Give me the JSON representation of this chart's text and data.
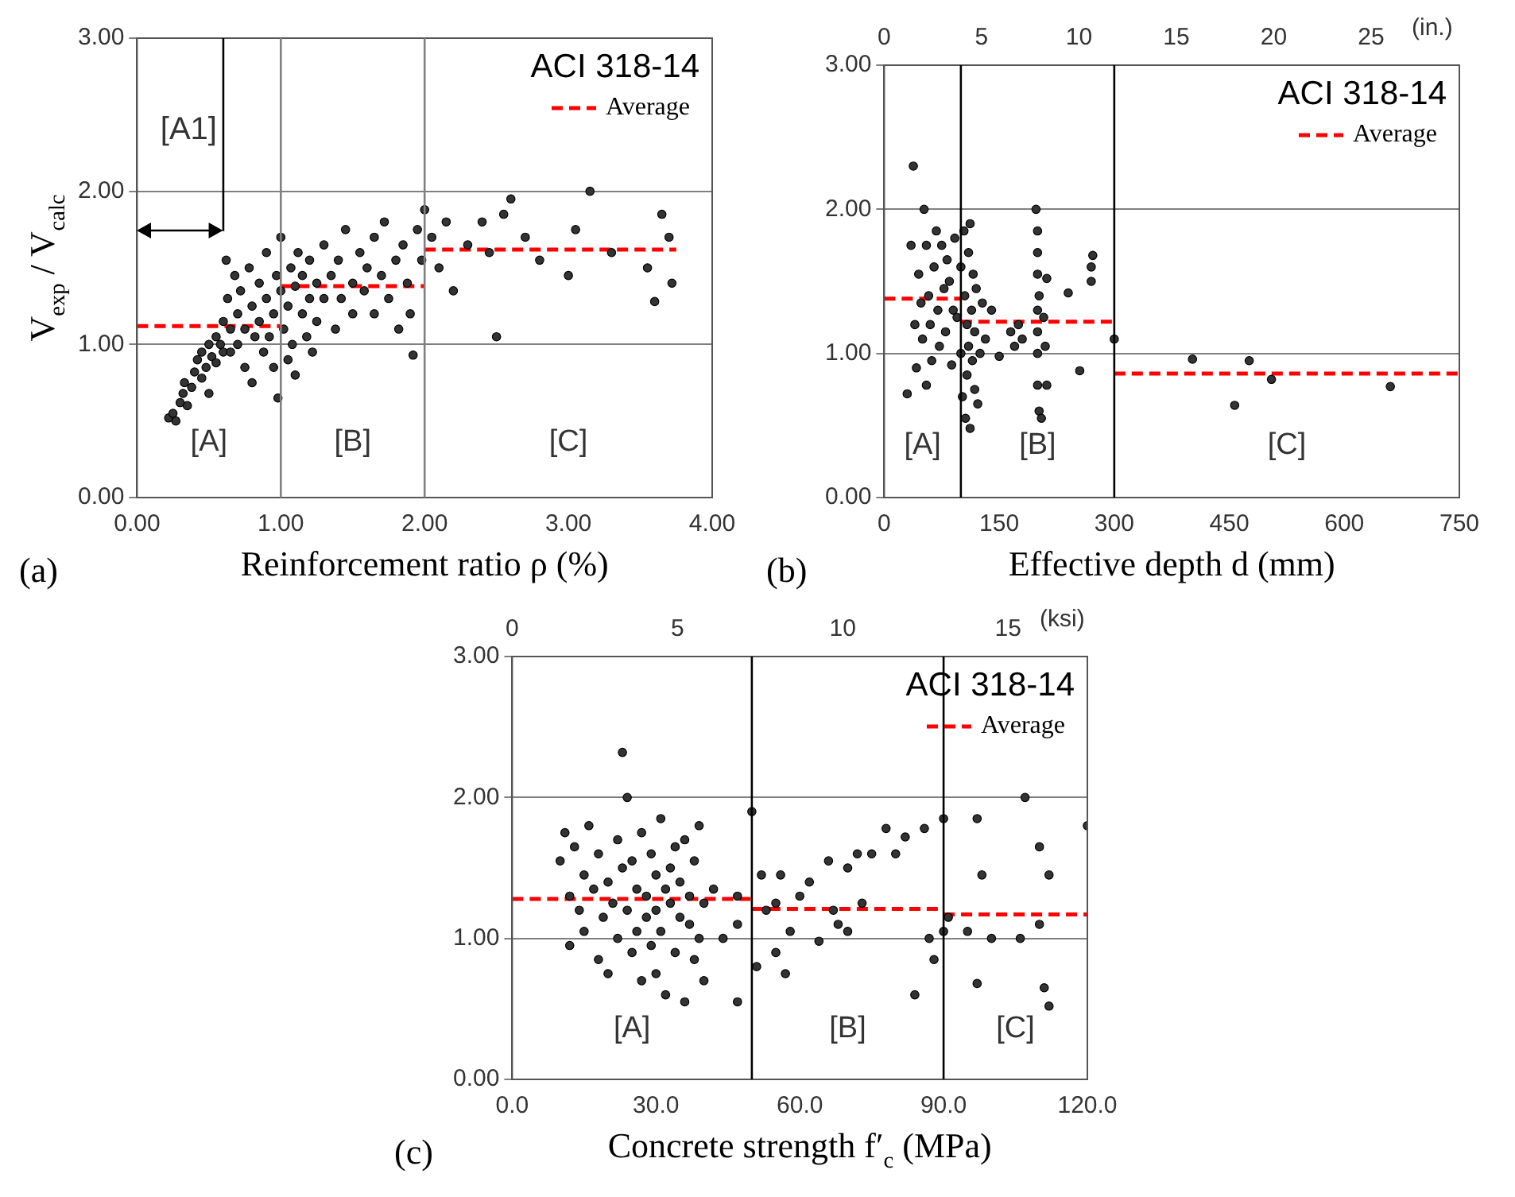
{
  "chart_data": [
    {
      "type": "scatter",
      "title": "ACI 318-14",
      "xlabel": "Reinforcement ratio ρ (%)",
      "ylabel": "V$_{exp}$ / V$_{calc}$",
      "xlim": [
        0,
        4
      ],
      "xticks": [
        {
          "value": 0,
          "label": "0.00"
        },
        {
          "value": 1,
          "label": "1.00"
        },
        {
          "value": 2,
          "label": "2.00"
        },
        {
          "value": 3,
          "label": "3.00"
        },
        {
          "value": 4,
          "label": "4.00"
        }
      ],
      "ylim": [
        0,
        3
      ],
      "yticks": [
        {
          "value": 0,
          "label": "0.00"
        },
        {
          "value": 1,
          "label": "1.00"
        },
        {
          "value": 2,
          "label": "2.00"
        },
        {
          "value": 3,
          "label": "3.00"
        }
      ],
      "grid": "y",
      "legend": "top right",
      "marker": "circle",
      "series": [
        {
          "color": "#333333",
          "x": [
            0.22,
            0.25,
            0.27,
            0.3,
            0.32,
            0.35,
            0.33,
            0.38,
            0.4,
            0.42,
            0.45,
            0.45,
            0.48,
            0.5,
            0.5,
            0.52,
            0.55,
            0.55,
            0.58,
            0.6,
            0.6,
            0.62,
            0.63,
            0.65,
            0.65,
            0.68,
            0.7,
            0.7,
            0.72,
            0.75,
            0.75,
            0.78,
            0.8,
            0.8,
            0.82,
            0.85,
            0.85,
            0.88,
            0.9,
            0.9,
            0.92,
            0.95,
            0.95,
            0.97,
            0.98,
            1.0,
            1.0,
            1.02,
            1.05,
            1.05,
            1.07,
            1.08,
            1.1,
            1.1,
            1.12,
            1.15,
            1.15,
            1.18,
            1.2,
            1.2,
            1.22,
            1.25,
            1.25,
            1.3,
            1.3,
            1.35,
            1.38,
            1.4,
            1.42,
            1.45,
            1.5,
            1.5,
            1.55,
            1.58,
            1.6,
            1.65,
            1.65,
            1.7,
            1.72,
            1.75,
            1.8,
            1.82,
            1.85,
            1.88,
            1.9,
            1.92,
            1.95,
            1.98,
            2.0,
            2.05,
            2.1,
            2.15,
            2.2,
            2.3,
            2.4,
            2.45,
            2.5,
            2.55,
            2.6,
            2.7,
            2.8,
            3.0,
            3.05,
            3.15,
            3.3,
            3.55,
            3.6,
            3.65,
            3.7,
            3.72
          ],
          "values": [
            0.52,
            0.55,
            0.5,
            0.62,
            0.68,
            0.6,
            0.75,
            0.72,
            0.82,
            0.9,
            0.78,
            0.95,
            0.85,
            1.0,
            0.68,
            0.92,
            1.05,
            0.88,
            1.0,
            0.95,
            1.15,
            1.55,
            1.3,
            1.1,
            0.95,
            1.45,
            1.2,
            1.0,
            1.35,
            1.1,
            0.85,
            1.5,
            1.25,
            0.75,
            1.05,
            1.4,
            1.15,
            0.95,
            1.3,
            1.6,
            1.05,
            1.2,
            0.85,
            1.45,
            0.65,
            1.35,
            1.7,
            1.1,
            1.25,
            0.9,
            1.5,
            1.0,
            1.38,
            0.8,
            1.6,
            1.2,
            1.45,
            1.05,
            1.3,
            1.55,
            0.95,
            1.4,
            1.15,
            1.65,
            1.3,
            1.45,
            1.1,
            1.55,
            1.3,
            1.75,
            1.4,
            1.2,
            1.6,
            1.35,
            1.5,
            1.7,
            1.2,
            1.45,
            1.8,
            1.3,
            1.55,
            1.1,
            1.65,
            1.4,
            1.2,
            0.93,
            1.75,
            1.55,
            1.88,
            1.7,
            1.5,
            1.8,
            1.35,
            1.65,
            1.8,
            1.6,
            1.05,
            1.85,
            1.95,
            1.7,
            1.55,
            1.45,
            1.75,
            2.0,
            1.6,
            1.5,
            1.28,
            1.85,
            1.7,
            1.4
          ]
        },
        {
          "type": "line",
          "name": "Average",
          "color": "#ff0000",
          "line_style": "dashed",
          "marker": "none",
          "x": [
            0,
            1
          ],
          "values": [
            1.12,
            1.12
          ]
        },
        {
          "type": "line",
          "color": "#ff0000",
          "line_style": "dashed",
          "marker": "none",
          "x": [
            1,
            2
          ],
          "values": [
            1.38,
            1.38
          ]
        },
        {
          "type": "line",
          "color": "#ff0000",
          "line_style": "dashed",
          "marker": "none",
          "x": [
            2,
            3.75
          ],
          "values": [
            1.62,
            1.62
          ]
        }
      ],
      "ref_lines": [
        {
          "axis": "x",
          "value": 0.6,
          "label": "[A1]",
          "color": "#000000"
        },
        {
          "axis": "x",
          "value": 1,
          "color": "#808080"
        },
        {
          "axis": "x",
          "value": 2,
          "color": "#808080"
        }
      ],
      "annotations": [
        "[A]",
        "[B]",
        "[C]",
        "(a)"
      ]
    },
    {
      "type": "scatter",
      "title": "ACI 318-14",
      "xlabel": "Effective depth d (mm)",
      "x2label": "(in.)",
      "xlim": [
        0,
        750
      ],
      "xticks": [
        0,
        150,
        300,
        450,
        600,
        750
      ],
      "x2lim": [
        0,
        29.53
      ],
      "x2ticks": [
        0,
        5,
        10,
        15,
        20,
        25
      ],
      "ylim": [
        0,
        3
      ],
      "yticks": [
        {
          "value": 0,
          "label": "0.00"
        },
        {
          "value": 1,
          "label": "1.00"
        },
        {
          "value": 2,
          "label": "2.00"
        },
        {
          "value": 3,
          "label": "3.00"
        }
      ],
      "grid": "y",
      "legend": "top right",
      "marker": "circle",
      "series": [
        {
          "color": "#333333",
          "x": [
            30,
            35,
            38,
            40,
            42,
            45,
            48,
            50,
            52,
            55,
            55,
            58,
            60,
            62,
            65,
            68,
            70,
            72,
            75,
            78,
            80,
            82,
            85,
            88,
            90,
            92,
            95,
            100,
            100,
            102,
            104,
            105,
            106,
            108,
            108,
            110,
            110,
            112,
            112,
            114,
            115,
            116,
            118,
            118,
            120,
            122,
            125,
            128,
            132,
            140,
            150,
            165,
            170,
            175,
            180,
            198,
            200,
            200,
            200,
            200,
            200,
            200,
            200,
            202,
            202,
            205,
            208,
            210,
            212,
            212,
            240,
            255,
            270,
            270,
            272,
            300,
            402,
            457,
            476,
            505,
            660
          ],
          "values": [
            0.72,
            1.75,
            2.3,
            1.2,
            0.9,
            1.55,
            1.35,
            1.1,
            2.0,
            1.75,
            0.78,
            1.4,
            1.2,
            0.95,
            1.6,
            1.85,
            1.3,
            1.05,
            1.75,
            1.45,
            1.15,
            1.65,
            1.5,
            0.92,
            1.3,
            1.8,
            1.25,
            1.6,
            1.0,
            0.7,
            1.85,
            1.4,
            0.55,
            1.2,
            0.85,
            1.7,
            1.05,
            1.9,
            0.48,
            1.3,
            0.95,
            1.55,
            0.75,
            1.15,
            1.45,
            0.65,
            1.0,
            1.35,
            1.1,
            1.3,
            0.98,
            1.15,
            1.05,
            1.2,
            1.1,
            2.0,
            1.85,
            1.7,
            1.55,
            1.3,
            1.15,
            1.0,
            0.78,
            1.4,
            0.6,
            0.55,
            1.25,
            1.05,
            1.52,
            0.78,
            1.42,
            0.88,
            1.6,
            1.5,
            1.68,
            1.1,
            0.96,
            0.64,
            0.95,
            0.82,
            0.77
          ]
        },
        {
          "type": "line",
          "name": "Average",
          "color": "#ff0000",
          "line_style": "dashed",
          "marker": "none",
          "x": [
            0,
            100
          ],
          "values": [
            1.38,
            1.38
          ]
        },
        {
          "type": "line",
          "color": "#ff0000",
          "line_style": "dashed",
          "marker": "none",
          "x": [
            100,
            300
          ],
          "values": [
            1.22,
            1.22
          ]
        },
        {
          "type": "line",
          "color": "#ff0000",
          "line_style": "dashed",
          "marker": "none",
          "x": [
            300,
            750
          ],
          "values": [
            0.86,
            0.86
          ]
        }
      ],
      "ref_lines": [
        {
          "axis": "x",
          "value": 100,
          "color": "#000000"
        },
        {
          "axis": "x",
          "value": 300,
          "color": "#000000"
        }
      ],
      "annotations": [
        "[A]",
        "[B]",
        "[C]",
        "(b)"
      ]
    },
    {
      "type": "scatter",
      "title": "ACI 318-14",
      "xlabel": "Concrete strength f′$_{c}$ (MPa)",
      "x2label": "(ksi)",
      "xlim": [
        0,
        120
      ],
      "xticks": [
        {
          "value": 0,
          "label": "0.0"
        },
        {
          "value": 30,
          "label": "30.0"
        },
        {
          "value": 60,
          "label": "60.0"
        },
        {
          "value": 90,
          "label": "90.0"
        },
        {
          "value": 120,
          "label": "120.0"
        }
      ],
      "x2lim": [
        0,
        17.4
      ],
      "x2ticks": [
        0,
        5,
        10,
        15
      ],
      "ylim": [
        0,
        3
      ],
      "yticks": [
        {
          "value": 0,
          "label": "0.00"
        },
        {
          "value": 1,
          "label": "1.00"
        },
        {
          "value": 2,
          "label": "2.00"
        },
        {
          "value": 3,
          "label": "3.00"
        }
      ],
      "grid": "y",
      "legend": "top right",
      "marker": "circle",
      "series": [
        {
          "color": "#333333",
          "x": [
            10,
            11,
            12,
            12,
            13,
            14,
            15,
            15,
            16,
            17,
            18,
            18,
            19,
            20,
            20,
            21,
            22,
            22,
            23,
            23,
            24,
            24,
            25,
            25,
            26,
            26,
            27,
            27,
            28,
            28,
            29,
            29,
            30,
            30,
            30,
            31,
            31,
            32,
            32,
            33,
            33,
            34,
            34,
            35,
            35,
            36,
            36,
            37,
            37,
            38,
            38,
            39,
            39,
            40,
            40,
            42,
            44,
            47,
            47,
            47,
            50,
            51,
            52,
            53,
            55,
            55,
            56,
            57,
            58,
            60,
            62,
            64,
            66,
            67,
            68,
            70,
            70,
            72,
            73,
            75,
            78,
            80,
            82,
            84,
            86,
            87,
            88,
            90,
            90,
            91,
            95,
            97,
            97,
            98,
            100,
            106,
            107,
            110,
            110,
            111,
            112,
            112,
            120
          ],
          "values": [
            1.55,
            1.75,
            1.3,
            0.95,
            1.65,
            1.2,
            1.45,
            1.05,
            1.8,
            1.35,
            0.85,
            1.6,
            1.15,
            1.4,
            0.75,
            1.25,
            1.7,
            1.0,
            2.32,
            1.5,
            2.0,
            1.2,
            0.9,
            1.55,
            1.35,
            1.05,
            1.75,
            0.7,
            1.3,
            1.15,
            1.6,
            0.95,
            1.45,
            1.2,
            0.75,
            1.85,
            1.05,
            1.35,
            0.6,
            1.5,
            1.25,
            0.9,
            1.65,
            1.15,
            1.4,
            0.55,
            1.7,
            1.1,
            1.3,
            0.85,
            1.55,
            1.8,
            1.0,
            1.25,
            0.7,
            1.35,
            1.0,
            0.55,
            1.1,
            1.3,
            1.9,
            0.8,
            1.45,
            1.2,
            0.9,
            1.25,
            1.45,
            0.75,
            1.05,
            1.3,
            1.4,
            0.98,
            1.55,
            1.2,
            1.1,
            1.5,
            1.05,
            1.6,
            1.25,
            1.6,
            1.78,
            1.6,
            1.72,
            0.6,
            1.78,
            1.0,
            0.85,
            1.85,
            1.05,
            1.15,
            1.05,
            1.85,
            0.68,
            1.45,
            1.0,
            1.0,
            2.0,
            1.65,
            1.1,
            0.65,
            1.45,
            0.52,
            1.8
          ]
        },
        {
          "type": "line",
          "name": "Average",
          "color": "#ff0000",
          "line_style": "dashed",
          "marker": "none",
          "x": [
            0,
            50
          ],
          "values": [
            1.28,
            1.28
          ]
        },
        {
          "type": "line",
          "color": "#ff0000",
          "line_style": "dashed",
          "marker": "none",
          "x": [
            50,
            90
          ],
          "values": [
            1.21,
            1.21
          ]
        },
        {
          "type": "line",
          "color": "#ff0000",
          "line_style": "dashed",
          "marker": "none",
          "x": [
            90,
            120
          ],
          "values": [
            1.17,
            1.17
          ]
        }
      ],
      "ref_lines": [
        {
          "axis": "x",
          "value": 50,
          "color": "#000000"
        },
        {
          "axis": "x",
          "value": 90,
          "color": "#000000"
        }
      ],
      "annotations": [
        "[A]",
        "[B]",
        "[C]",
        "(c)"
      ]
    }
  ]
}
